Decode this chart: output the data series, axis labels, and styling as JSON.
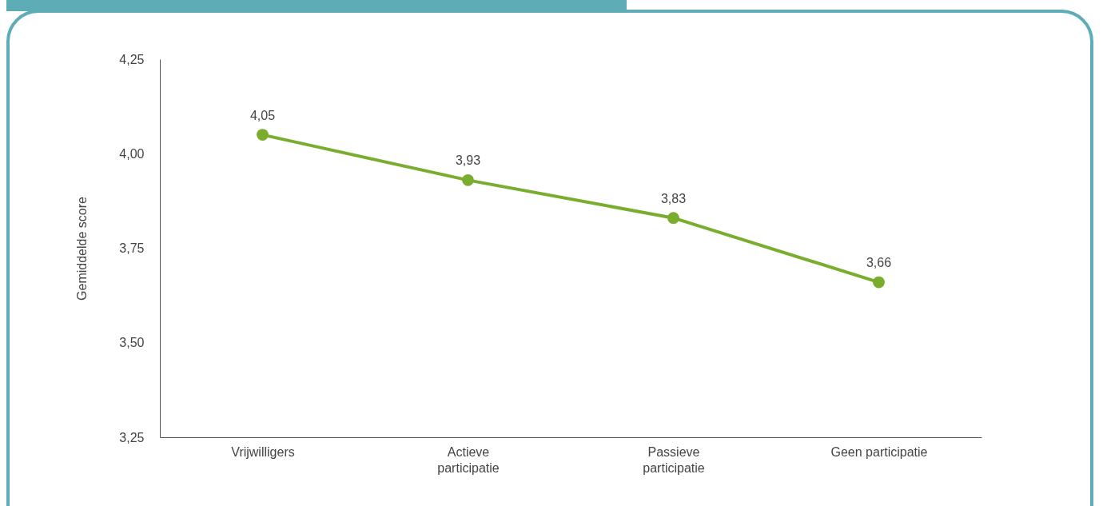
{
  "chart_data": {
    "type": "line",
    "ylabel": "Gemiddelde score",
    "categories": [
      "Vrijwilligers",
      "Actieve participatie",
      "Passieve participatie",
      "Geen participatie"
    ],
    "series": [
      {
        "color": "#7aac2e",
        "values": [
          4.05,
          3.93,
          3.83,
          3.66
        ],
        "value_labels": [
          "4,05",
          "3,93",
          "3,83",
          "3,66"
        ]
      }
    ],
    "ylim": [
      3.25,
      4.25
    ],
    "yticks": [
      {
        "value": 3.25,
        "label": "3,25"
      },
      {
        "value": 3.5,
        "label": "3,50"
      },
      {
        "value": 3.75,
        "label": "3,75"
      },
      {
        "value": 4.0,
        "label": "4,00"
      },
      {
        "value": 4.25,
        "label": "4,25"
      }
    ],
    "grid": false,
    "marker": "circle",
    "line_style": "solid"
  }
}
